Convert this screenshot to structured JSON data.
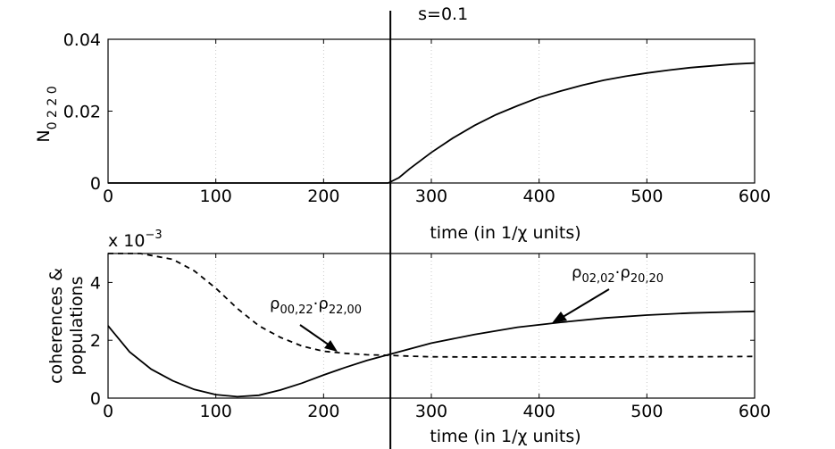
{
  "chart_data": [
    {
      "type": "line",
      "panel": "top",
      "ylabel_main": "N",
      "ylabel_sub": "0 2 2 0",
      "xlabel": "time (in 1/χ units)",
      "xlim": [
        0,
        600
      ],
      "ylim": [
        0,
        0.04
      ],
      "xticks": [
        "0",
        "100",
        "200",
        "300",
        "400",
        "500",
        "600"
      ],
      "yticks": [
        "0",
        "0.02",
        "0.04"
      ],
      "grid": "x-dotted",
      "series": [
        {
          "style": "solid",
          "x": [
            0,
            100,
            200,
            260,
            270,
            280,
            300,
            320,
            340,
            360,
            380,
            400,
            420,
            440,
            460,
            480,
            500,
            520,
            540,
            560,
            580,
            600
          ],
          "y": [
            0,
            0,
            0,
            0,
            0.0015,
            0.004,
            0.0085,
            0.0125,
            0.016,
            0.019,
            0.0215,
            0.0238,
            0.0256,
            0.0272,
            0.0286,
            0.0297,
            0.0306,
            0.0314,
            0.0321,
            0.0326,
            0.0331,
            0.0334
          ]
        }
      ]
    },
    {
      "type": "line",
      "panel": "bottom",
      "ylabel": [
        "coherences &",
        "populations"
      ],
      "xlabel": "time (in 1/χ units)",
      "scale_note_prefix": "x 10",
      "scale_note_exponent": "−3",
      "xlim": [
        0,
        600
      ],
      "ylim": [
        0,
        5
      ],
      "xticks": [
        "0",
        "100",
        "200",
        "300",
        "400",
        "500",
        "600"
      ],
      "yticks": [
        "0",
        "2",
        "4"
      ],
      "grid": "x-dotted",
      "series": [
        {
          "style": "solid",
          "label_main": "ρ",
          "label_sub": "02,02",
          "label_dot": "·",
          "label_main2": "ρ",
          "label_sub2": "20,20",
          "x": [
            0,
            20,
            40,
            60,
            80,
            100,
            120,
            140,
            160,
            180,
            200,
            220,
            240,
            260,
            280,
            300,
            340,
            380,
            420,
            460,
            500,
            540,
            580,
            600
          ],
          "y": [
            2.5,
            1.6,
            1.0,
            0.6,
            0.3,
            0.12,
            0.05,
            0.1,
            0.28,
            0.52,
            0.8,
            1.06,
            1.3,
            1.5,
            1.7,
            1.9,
            2.2,
            2.45,
            2.62,
            2.77,
            2.87,
            2.94,
            2.98,
            3.0
          ]
        },
        {
          "style": "dashed",
          "label_main": "ρ",
          "label_sub": "00,22",
          "label_dot": "·",
          "label_main2": "ρ",
          "label_sub2": "22,00",
          "x": [
            0,
            30,
            60,
            80,
            100,
            120,
            140,
            160,
            180,
            200,
            220,
            240,
            260,
            280,
            300,
            350,
            400,
            450,
            500,
            550,
            600
          ],
          "y": [
            5,
            5,
            4.8,
            4.4,
            3.8,
            3.1,
            2.5,
            2.1,
            1.8,
            1.62,
            1.55,
            1.5,
            1.48,
            1.45,
            1.43,
            1.42,
            1.42,
            1.42,
            1.43,
            1.43,
            1.44
          ]
        }
      ]
    }
  ],
  "marker": {
    "label": "s=0.1",
    "x": 262
  }
}
